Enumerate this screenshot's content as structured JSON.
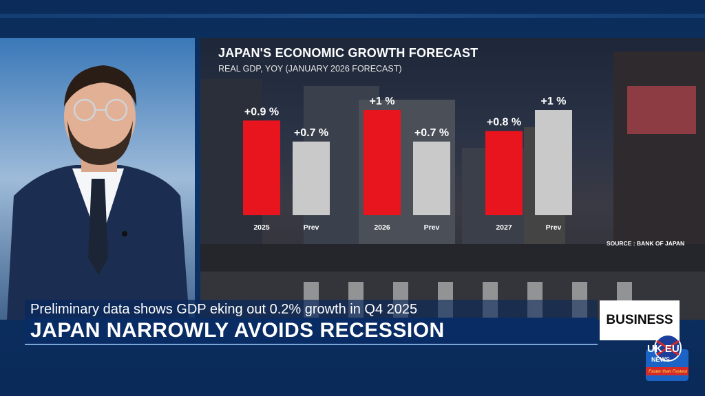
{
  "chart_data": {
    "type": "bar",
    "title": "JAPAN'S ECONOMIC GROWTH FORECAST",
    "subtitle": "REAL GDP, YOY (JANUARY 2026 FORECAST)",
    "source": "SOURCE : BANK OF JAPAN",
    "categories": [
      "2025",
      "Prev",
      "2026",
      "Prev",
      "2027",
      "Prev"
    ],
    "values": [
      0.9,
      0.7,
      1.0,
      0.7,
      0.8,
      1.0
    ],
    "labels": [
      "+0.9 %",
      "+0.7 %",
      "+1 %",
      "+0.7 %",
      "+0.8 %",
      "+1 %"
    ],
    "series_type": [
      "forecast",
      "previous",
      "forecast",
      "previous",
      "forecast",
      "previous"
    ],
    "colors": {
      "forecast": "#e8151f",
      "previous": "#c9c9c9"
    },
    "ylim": [
      0,
      1.0
    ]
  },
  "lower_third": {
    "subheadline": "Preliminary data shows GDP eking out 0.2% growth in Q4 2025",
    "headline": "JAPAN NARROWLY AVOIDS RECESSION",
    "section": "BUSINESS"
  },
  "logo": {
    "name": "UK EU",
    "sub": "NEWS",
    "tagline": "Faster than Fastest"
  },
  "icons": [
    "presenter-image",
    "city-background-image",
    "uk-eu-news-logo"
  ]
}
